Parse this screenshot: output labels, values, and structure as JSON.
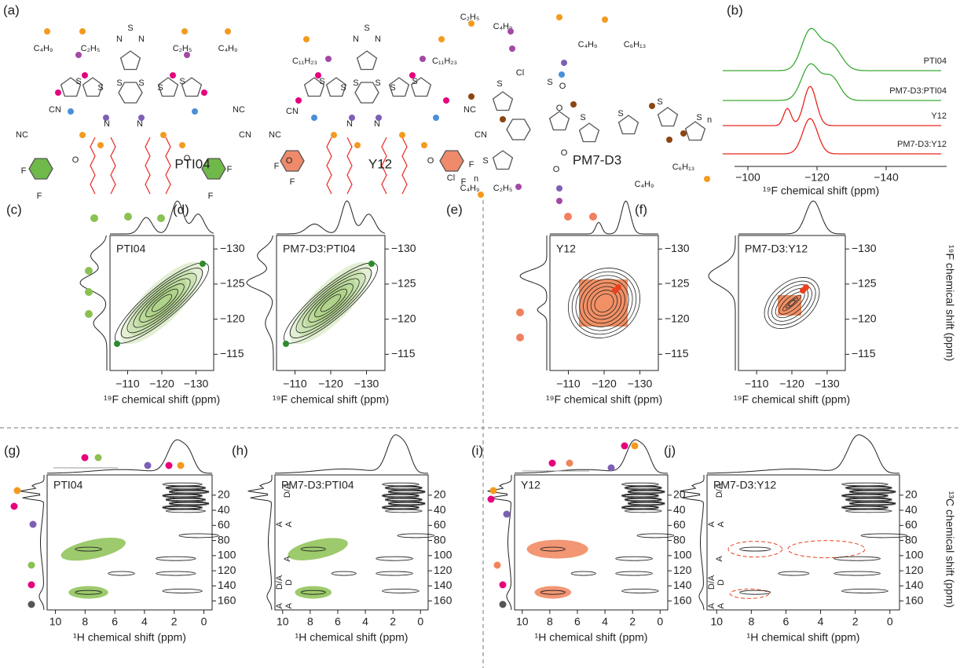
{
  "panel_a": {
    "label": "(a)",
    "molecules": [
      {
        "name": "PTI04",
        "color": "#3aaa35",
        "chains": [
          "C₄H₉",
          "C₂H₅",
          "C₂H₅",
          "C₄H₉"
        ],
        "atoms": [
          "S",
          "N",
          "N",
          "S",
          "S",
          "S",
          "S",
          "S",
          "S",
          "N",
          "N",
          "CN",
          "NC",
          "NC",
          "CN",
          "O",
          "O",
          "F",
          "F",
          "F",
          "F"
        ]
      },
      {
        "name": "Y12",
        "color": "#e8281e",
        "chains": [
          "C₁₁H₂₃",
          "C₁₁H₂₃"
        ],
        "atoms": [
          "S",
          "N",
          "N",
          "S",
          "S",
          "S",
          "S",
          "S",
          "S",
          "N",
          "N",
          "CN",
          "NC",
          "NC",
          "CN",
          "O",
          "O",
          "F",
          "F",
          "F",
          "F"
        ]
      },
      {
        "name": "PM7-D3",
        "color": "#e07b27",
        "chains": [
          "C₂H₅",
          "C₄H₉",
          "C₄H₉",
          "C₆H₁₃",
          "C₄H₉",
          "C₂H₅",
          "C₄H₉",
          "C₆H₁₃"
        ],
        "atoms": [
          "Cl",
          "Cl",
          "S",
          "S",
          "S",
          "S",
          "S",
          "S",
          "S",
          "O",
          "O",
          "O",
          "O",
          "n",
          "n"
        ]
      }
    ]
  },
  "panel_b": {
    "label": "(b)",
    "traces": [
      "PTI04",
      "PM7-D3:PTI04",
      "Y12",
      "PM7-D3:Y12"
    ],
    "x_ticks": [
      "−100",
      "−120",
      "−140"
    ],
    "x_label": "¹⁹F chemical shift (ppm)"
  },
  "ff_axis": {
    "x_ticks": [
      "−110",
      "−120",
      "−130"
    ],
    "y_ticks": [
      "−130",
      "−125",
      "−120",
      "−115"
    ],
    "label": "¹⁹F chemical shift (ppm)"
  },
  "ff_panels": [
    {
      "label": "(c)",
      "sample": "PTI04"
    },
    {
      "label": "(d)",
      "sample": "PM7-D3:PTI04"
    },
    {
      "label": "(e)",
      "sample": "Y12"
    },
    {
      "label": "(f)",
      "sample": "PM7-D3:Y12"
    }
  ],
  "hc_axis": {
    "x_ticks": [
      "10",
      "8",
      "6",
      "4",
      "2",
      "0"
    ],
    "y_ticks": [
      "20",
      "40",
      "60",
      "80",
      "100",
      "120",
      "140",
      "160"
    ],
    "x_label": "¹H chemical shift (ppm)",
    "y_label": "¹³C chemical shift (ppm)"
  },
  "hc_panels": [
    {
      "label": "(g)",
      "sample": "PTI04"
    },
    {
      "label": "(h)",
      "sample": "PM7-D3:PTI04",
      "annotations": [
        "D/A",
        "A",
        "A",
        "A",
        "D/A",
        "D",
        "A",
        "A"
      ]
    },
    {
      "label": "(i)",
      "sample": "Y12"
    },
    {
      "label": "(j)",
      "sample": "PM7-D3:Y12",
      "annotations": [
        "D/A",
        "A",
        "A",
        "A",
        "D/A",
        "D",
        "A",
        "A"
      ]
    }
  ]
}
